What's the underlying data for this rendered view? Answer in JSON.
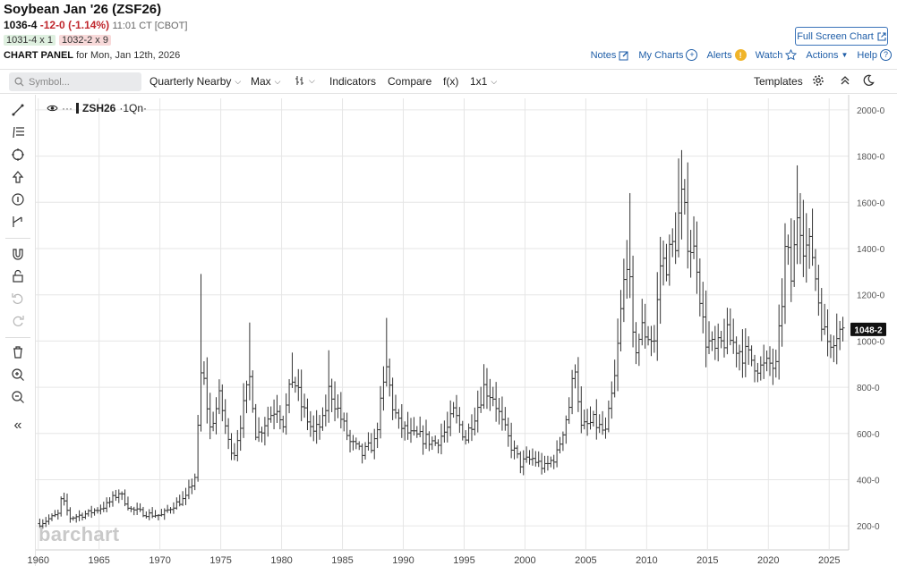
{
  "header": {
    "title": "Soybean Jan '26 (ZSF26)",
    "last": "1036-4",
    "change": "-12-0 (-1.14%)",
    "time": "11:01 CT [CBOT]",
    "bid": "1031-4 x 1",
    "ask": "1032-2 x 9",
    "panel_label": "CHART PANEL",
    "panel_date": "for Mon, Jan 12th, 2026"
  },
  "links": {
    "fullscreen": "Full Screen Chart",
    "notes": "Notes",
    "mycharts": "My Charts",
    "alerts": "Alerts",
    "watch": "Watch",
    "actions": "Actions",
    "help": "Help"
  },
  "toolbar": {
    "search_placeholder": "Symbol...",
    "period": "Quarterly Nearby",
    "range": "Max",
    "indicators": "Indicators",
    "compare": "Compare",
    "fx": "f(x)",
    "layout": "1x1",
    "templates": "Templates"
  },
  "legend": {
    "symbol": "ZSH26",
    "period": "·1Qn·"
  },
  "watermark": "barchart",
  "icons": {
    "search": "search-icon",
    "notes": "pencil-icon",
    "mycharts": "plus-circle-icon",
    "alerts": "alert-icon",
    "watch": "star-icon",
    "help": "question-icon",
    "settings": "gear-icon",
    "collapse": "chevron-up-icon",
    "theme": "moon-icon"
  },
  "chart_data": {
    "type": "bar",
    "subtype": "ohlc",
    "symbol": "ZSH26",
    "period": "quarterly nearby",
    "ylim": [
      100,
      2050
    ],
    "y_ticks": [
      200,
      400,
      600,
      800,
      1000,
      1200,
      1400,
      1600,
      1800,
      2000
    ],
    "y_tick_labels": [
      "200-0",
      "400-0",
      "600-0",
      "800-0",
      "1000-0",
      "1200-0",
      "1400-0",
      "1600-0",
      "1800-0",
      "2000-0"
    ],
    "xlim": [
      1959.8,
      2026.6
    ],
    "x_ticks": [
      1960,
      1965,
      1970,
      1975,
      1980,
      1985,
      1990,
      1995,
      2000,
      2005,
      2010,
      2015,
      2020,
      2025
    ],
    "x_tick_labels": [
      "1960",
      "1965",
      "1970",
      "1975",
      "1980",
      "1985",
      "1990",
      "1995",
      "2000",
      "2005",
      "2010",
      "2015",
      "2020",
      "2025"
    ],
    "last_price_label": "1048-2",
    "last_price": 1048.25,
    "colors": {
      "bar": "#333333",
      "grid": "#e6e6e6",
      "price_tag": "#111111"
    },
    "key_points": [
      [
        1960.0,
        210
      ],
      [
        1961.5,
        250
      ],
      [
        1961.8,
        320
      ],
      [
        1962.5,
        235
      ],
      [
        1964.0,
        255
      ],
      [
        1965.5,
        290
      ],
      [
        1966.5,
        345
      ],
      [
        1967.5,
        270
      ],
      [
        1969.0,
        250
      ],
      [
        1970.0,
        245
      ],
      [
        1971.0,
        290
      ],
      [
        1972.0,
        320
      ],
      [
        1972.8,
        420
      ],
      [
        1973.3,
        900
      ],
      [
        1973.6,
        780
      ],
      [
        1974.0,
        620
      ],
      [
        1974.8,
        760
      ],
      [
        1975.5,
        560
      ],
      [
        1976.0,
        520
      ],
      [
        1976.5,
        650
      ],
      [
        1977.3,
        850
      ],
      [
        1977.8,
        580
      ],
      [
        1978.5,
        650
      ],
      [
        1979.5,
        720
      ],
      [
        1980.0,
        650
      ],
      [
        1980.8,
        850
      ],
      [
        1981.5,
        720
      ],
      [
        1982.5,
        600
      ],
      [
        1983.3,
        650
      ],
      [
        1983.8,
        800
      ],
      [
        1984.5,
        700
      ],
      [
        1985.5,
        560
      ],
      [
        1986.5,
        510
      ],
      [
        1987.5,
        560
      ],
      [
        1988.5,
        880
      ],
      [
        1989.0,
        720
      ],
      [
        1989.5,
        640
      ],
      [
        1990.5,
        590
      ],
      [
        1991.5,
        580
      ],
      [
        1992.5,
        560
      ],
      [
        1993.5,
        620
      ],
      [
        1994.0,
        690
      ],
      [
        1995.0,
        580
      ],
      [
        1996.0,
        720
      ],
      [
        1996.5,
        800
      ],
      [
        1997.3,
        760
      ],
      [
        1998.0,
        640
      ],
      [
        1998.8,
        540
      ],
      [
        1999.5,
        470
      ],
      [
        2000.5,
        490
      ],
      [
        2001.5,
        450
      ],
      [
        2002.5,
        510
      ],
      [
        2003.5,
        720
      ],
      [
        2004.0,
        900
      ],
      [
        2004.5,
        620
      ],
      [
        2005.5,
        650
      ],
      [
        2006.5,
        600
      ],
      [
        2007.3,
        850
      ],
      [
        2007.8,
        1150
      ],
      [
        2008.3,
        1400
      ],
      [
        2008.8,
        950
      ],
      [
        2009.5,
        1050
      ],
      [
        2010.5,
        1000
      ],
      [
        2011.0,
        1330
      ],
      [
        2011.6,
        1350
      ],
      [
        2012.3,
        1450
      ],
      [
        2012.7,
        1620
      ],
      [
        2013.3,
        1440
      ],
      [
        2014.0,
        1350
      ],
      [
        2014.6,
        1020
      ],
      [
        2015.5,
        950
      ],
      [
        2016.5,
        1020
      ],
      [
        2017.5,
        960
      ],
      [
        2018.5,
        920
      ],
      [
        2019.3,
        880
      ],
      [
        2020.0,
        900
      ],
      [
        2020.5,
        880
      ],
      [
        2020.9,
        1100
      ],
      [
        2021.3,
        1420
      ],
      [
        2021.8,
        1250
      ],
      [
        2022.3,
        1600
      ],
      [
        2022.8,
        1420
      ],
      [
        2023.5,
        1380
      ],
      [
        2024.0,
        1180
      ],
      [
        2024.6,
        1000
      ],
      [
        2025.0,
        1010
      ],
      [
        2025.6,
        1050
      ],
      [
        2026.0,
        1036
      ]
    ]
  }
}
